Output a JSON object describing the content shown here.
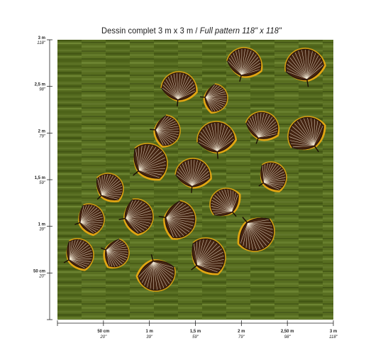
{
  "title": {
    "main": "Dessin complet 3 m x 3 m /",
    "italic": "Full pattern 118\" x 118\""
  },
  "axes": {
    "left_ticks": [
      {
        "metric": "3 m",
        "imperial": "118\"",
        "value_m": 3.0
      },
      {
        "metric": "2,5 m",
        "imperial": "98\"",
        "value_m": 2.5
      },
      {
        "metric": "2 m",
        "imperial": "79\"",
        "value_m": 2.0
      },
      {
        "metric": "1,5 m",
        "imperial": "59\"",
        "value_m": 1.5
      },
      {
        "metric": "1 m",
        "imperial": "39\"",
        "value_m": 1.0
      },
      {
        "metric": "50 cm",
        "imperial": "20\"",
        "value_m": 0.5
      }
    ],
    "bottom_ticks": [
      {
        "metric": "50 cm",
        "imperial": "20\"",
        "value_m": 0.5
      },
      {
        "metric": "1 m",
        "imperial": "39\"",
        "value_m": 1.0
      },
      {
        "metric": "1,5 m",
        "imperial": "59\"",
        "value_m": 1.5
      },
      {
        "metric": "2 m",
        "imperial": "79\"",
        "value_m": 2.0
      },
      {
        "metric": "2,50 m",
        "imperial": "98\"",
        "value_m": 2.5
      },
      {
        "metric": "3 m",
        "imperial": "118\"",
        "value_m": 3.0
      }
    ]
  },
  "colors": {
    "background_green": "#556b1f",
    "stripe_dark": "#3f5214",
    "stripe_light": "#6b8330",
    "leaf_dark": "#2a160c",
    "leaf_brown": "#5a3118",
    "leaf_gold": "#e1a512",
    "vein": "#f3ead6"
  }
}
